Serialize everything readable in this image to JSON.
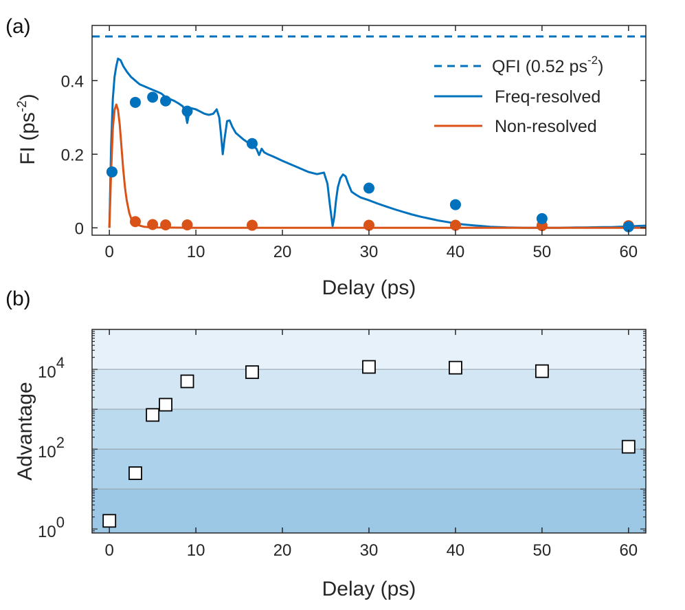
{
  "colors": {
    "blue": "#0072BD",
    "orange": "#D95319",
    "axis": "#262626"
  },
  "chart_data": [
    {
      "panel_label": "(a)",
      "type": "line",
      "xlabel": "Delay (ps)",
      "ylabel_main": "FI (ps",
      "ylabel_sup": "-2",
      "ylabel_close": ")",
      "xlim": [
        -2,
        62
      ],
      "ylim": [
        -0.02,
        0.55
      ],
      "xticks": [
        0,
        10,
        20,
        30,
        40,
        50,
        60
      ],
      "xtick_labels": [
        "0",
        "10",
        "20",
        "30",
        "40",
        "50",
        "60"
      ],
      "yticks": [
        0,
        0.2,
        0.4
      ],
      "ytick_labels": [
        "0",
        "0.2",
        "0.4"
      ],
      "legend_position": "top-right",
      "legend": [
        {
          "key": "qfi",
          "label_main": "QFI (0.52 ps",
          "label_sup": "-2",
          "label_close": ")"
        },
        {
          "key": "freq",
          "label": "Freq-resolved"
        },
        {
          "key": "non",
          "label": "Non-resolved"
        }
      ],
      "qfi_value": 0.52,
      "freq_curve": {
        "x": [
          0.0,
          0.2,
          0.4,
          0.6,
          0.8,
          1.0,
          1.3,
          1.6,
          2.0,
          2.5,
          3.0,
          3.5,
          4.0,
          4.5,
          5.0,
          5.5,
          6.0,
          6.5,
          7.0,
          7.5,
          8.0,
          8.5,
          8.8,
          9.0,
          9.2,
          9.5,
          10.0,
          10.5,
          11.0,
          11.5,
          12.0,
          12.4,
          12.7,
          12.9,
          13.1,
          13.3,
          13.6,
          13.9,
          14.2,
          14.6,
          15.0,
          15.5,
          16.0,
          16.5,
          17.0,
          17.3,
          17.6,
          17.9,
          18.3,
          19.0,
          20.0,
          21.0,
          22.0,
          23.0,
          24.0,
          24.8,
          25.2,
          25.5,
          25.8,
          26.0,
          26.2,
          26.4,
          26.7,
          27.0,
          27.3,
          27.6,
          28.0,
          28.5,
          29.0,
          30.0,
          31.0,
          32.0,
          33.0,
          34.0,
          35.0,
          36.0,
          37.0,
          38.0,
          39.0,
          40.0,
          41.0,
          42.0,
          43.0,
          44.0,
          45.0,
          46.0,
          47.0,
          48.0,
          49.0,
          50.0,
          51.0,
          52.0,
          53.0,
          54.0,
          55.0,
          56.0,
          57.0,
          58.0,
          59.0,
          60.0,
          61.0,
          62.0
        ],
        "y": [
          0.0,
          0.22,
          0.35,
          0.41,
          0.44,
          0.46,
          0.455,
          0.44,
          0.425,
          0.41,
          0.4,
          0.39,
          0.385,
          0.38,
          0.375,
          0.37,
          0.365,
          0.355,
          0.35,
          0.345,
          0.338,
          0.33,
          0.31,
          0.285,
          0.31,
          0.325,
          0.322,
          0.316,
          0.31,
          0.307,
          0.31,
          0.322,
          0.3,
          0.255,
          0.2,
          0.24,
          0.29,
          0.292,
          0.275,
          0.258,
          0.25,
          0.24,
          0.232,
          0.225,
          0.215,
          0.198,
          0.215,
          0.205,
          0.2,
          0.193,
          0.182,
          0.172,
          0.162,
          0.152,
          0.146,
          0.15,
          0.12,
          0.06,
          0.005,
          0.03,
          0.075,
          0.11,
          0.135,
          0.145,
          0.14,
          0.12,
          0.098,
          0.09,
          0.083,
          0.075,
          0.066,
          0.058,
          0.05,
          0.043,
          0.036,
          0.03,
          0.025,
          0.02,
          0.016,
          0.012,
          0.009,
          0.007,
          0.005,
          0.003,
          0.002,
          0.001,
          0.0005,
          0.0,
          0.0,
          0.0,
          0.0,
          0.0,
          0.0005,
          0.001,
          0.001,
          0.0015,
          0.002,
          0.002,
          0.003,
          0.004,
          0.005,
          0.006
        ]
      },
      "non_curve": {
        "x": [
          0.0,
          0.2,
          0.4,
          0.6,
          0.8,
          1.0,
          1.2,
          1.4,
          1.6,
          1.8,
          2.0,
          2.3,
          2.6,
          3.0,
          3.5,
          4.0,
          5.0,
          10.0,
          20.0,
          30.0,
          40.0,
          50.0,
          60.0,
          62.0
        ],
        "y": [
          0.0,
          0.15,
          0.27,
          0.32,
          0.335,
          0.32,
          0.28,
          0.22,
          0.16,
          0.11,
          0.075,
          0.04,
          0.02,
          0.012,
          0.006,
          0.003,
          0.001,
          0.0,
          0.0,
          0.0,
          0.0,
          0.0,
          0.0,
          0.0
        ]
      },
      "freq_points": {
        "x": [
          0.3,
          3.0,
          5.0,
          6.5,
          9.0,
          16.5,
          30.0,
          40.0,
          50.0,
          60.0
        ],
        "y": [
          0.152,
          0.341,
          0.355,
          0.345,
          0.317,
          0.229,
          0.108,
          0.063,
          0.025,
          0.003
        ]
      },
      "non_points": {
        "x": [
          0.3,
          3.0,
          5.0,
          6.5,
          9.0,
          16.5,
          30.0,
          40.0,
          50.0,
          60.0
        ],
        "y": [
          0.152,
          0.017,
          0.009,
          0.008,
          0.008,
          0.007,
          0.007,
          0.007,
          0.006,
          0.006
        ]
      }
    },
    {
      "panel_label": "(b)",
      "type": "scatter",
      "xlabel": "Delay (ps)",
      "ylabel": "Advantage",
      "xlim": [
        -2,
        62
      ],
      "ylim_log10": [
        -0.1,
        5
      ],
      "xticks": [
        0,
        10,
        20,
        30,
        40,
        50,
        60
      ],
      "xtick_labels": [
        "0",
        "10",
        "20",
        "30",
        "40",
        "50",
        "60"
      ],
      "yticks_log10": [
        0,
        2,
        4
      ],
      "ytick_labels": [
        {
          "base": "10",
          "exp": "0"
        },
        {
          "base": "10",
          "exp": "2"
        },
        {
          "base": "10",
          "exp": "4"
        }
      ],
      "background_bands_log10": [
        [
          -0.1,
          1
        ],
        [
          1,
          2
        ],
        [
          2,
          3
        ],
        [
          3,
          4
        ],
        [
          4,
          5
        ]
      ],
      "band_colors": [
        "#9CC8E6",
        "#ACD1EA",
        "#BCDAEE",
        "#D2E6F4",
        "#E6F1F9"
      ],
      "points": {
        "x": [
          0.0,
          3.0,
          5.0,
          6.5,
          9.0,
          16.5,
          30.0,
          40.0,
          50.0,
          60.0
        ],
        "y": [
          1.6,
          25,
          720,
          1300,
          5000,
          8500,
          11500,
          11000,
          9000,
          115
        ]
      }
    }
  ]
}
